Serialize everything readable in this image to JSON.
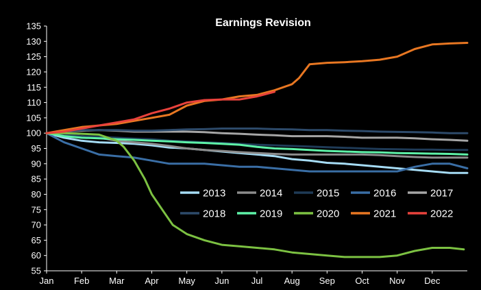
{
  "chart_data": {
    "type": "line",
    "title": "Earnings Revision",
    "xlabel": "",
    "ylabel": "",
    "ylim": [
      55,
      135
    ],
    "yticks": [
      55,
      60,
      65,
      70,
      75,
      80,
      85,
      90,
      95,
      100,
      105,
      110,
      115,
      120,
      125,
      130,
      135
    ],
    "xlim": [
      0,
      12
    ],
    "month_ticks": [
      "Jan",
      "Feb",
      "Mar",
      "Apr",
      "May",
      "Jun",
      "Jul",
      "Aug",
      "Sep",
      "Oct",
      "Nov",
      "Dec"
    ],
    "grid": false,
    "legend_position": "bottom-right",
    "series": [
      {
        "name": "2013",
        "color": "#a6dcf5",
        "x": [
          0,
          0.5,
          1,
          1.5,
          2,
          2.5,
          3,
          3.5,
          4,
          4.5,
          5,
          5.5,
          6,
          6.5,
          7,
          7.5,
          8,
          8.5,
          9,
          9.5,
          10,
          10.5,
          11,
          11.5,
          12
        ],
        "y": [
          100,
          98.5,
          97.5,
          97,
          96.8,
          96.5,
          96,
          95.3,
          95,
          94.5,
          94,
          93.5,
          93,
          92.5,
          91.5,
          91,
          90.3,
          90,
          89.5,
          89,
          88.5,
          88,
          87.5,
          87,
          87
        ]
      },
      {
        "name": "2014",
        "color": "#8c8c8c",
        "x": [
          0,
          0.5,
          1,
          1.5,
          2,
          2.5,
          3,
          3.5,
          4,
          4.5,
          5,
          5.5,
          6,
          6.5,
          7,
          7.5,
          8,
          8.5,
          9,
          9.5,
          10,
          10.5,
          11,
          11.5,
          12
        ],
        "y": [
          100,
          99.5,
          99,
          98.5,
          97.5,
          97,
          96.5,
          95.8,
          95,
          94.5,
          94.2,
          93.8,
          93.5,
          93.2,
          93,
          93,
          93,
          93,
          93,
          92.8,
          92.5,
          92.2,
          92,
          92,
          92
        ]
      },
      {
        "name": "2015",
        "color": "#1f3b57",
        "x": [
          0,
          0.5,
          1,
          1.5,
          2,
          2.5,
          3,
          3.5,
          4,
          4.5,
          5,
          5.5,
          6,
          6.5,
          7,
          7.5,
          8,
          8.5,
          9,
          9.5,
          10,
          10.5,
          11,
          11.5,
          12
        ],
        "y": [
          100,
          99.5,
          99,
          98.8,
          98.5,
          98.2,
          98,
          97.5,
          97.3,
          97,
          96.8,
          96.5,
          96.2,
          96,
          95.8,
          95.6,
          95.4,
          95.2,
          95,
          94.8,
          94.7,
          94.6,
          94.6,
          94.5,
          94.5
        ]
      },
      {
        "name": "2016",
        "color": "#3a6ea5",
        "x": [
          0,
          0.5,
          1,
          1.5,
          2,
          2.5,
          3,
          3.5,
          4,
          4.5,
          5,
          5.5,
          6,
          6.5,
          7,
          7.5,
          8,
          8.5,
          9,
          9.5,
          10,
          10.5,
          11,
          11.5,
          12
        ],
        "y": [
          100,
          97,
          95,
          93,
          92.5,
          92,
          91,
          90,
          90,
          90,
          89.5,
          89,
          89,
          88.5,
          88,
          87.5,
          87.5,
          87.5,
          87.5,
          87.5,
          87.5,
          89,
          90,
          90,
          88.5
        ]
      },
      {
        "name": "2017",
        "color": "#a6a6a6",
        "x": [
          0,
          0.5,
          1,
          1.5,
          2,
          2.5,
          3,
          3.5,
          4,
          4.5,
          5,
          5.5,
          6,
          6.5,
          7,
          7.5,
          8,
          8.5,
          9,
          9.5,
          10,
          10.5,
          11,
          11.5,
          12
        ],
        "y": [
          100,
          100.5,
          100.8,
          101,
          100.8,
          100.5,
          100.5,
          100.5,
          100.5,
          100.3,
          100,
          99.8,
          99.5,
          99.3,
          99,
          99,
          99,
          98.8,
          98.5,
          98.5,
          98.5,
          98.3,
          98,
          97.8,
          97.5
        ]
      },
      {
        "name": "2018",
        "color": "#2d4a6a",
        "x": [
          0,
          0.5,
          1,
          1.5,
          2,
          2.5,
          3,
          3.5,
          4,
          4.5,
          5,
          5.5,
          6,
          6.5,
          7,
          7.5,
          8,
          8.5,
          9,
          9.5,
          10,
          10.5,
          11,
          11.5,
          12
        ],
        "y": [
          100,
          100.5,
          101,
          101,
          101,
          100.8,
          100.8,
          101,
          101.2,
          101.3,
          101.5,
          101.5,
          101.5,
          101.3,
          101.2,
          101,
          101,
          100.8,
          100.7,
          100.5,
          100.4,
          100.3,
          100.2,
          100,
          100
        ]
      },
      {
        "name": "2019",
        "color": "#5ef2a8",
        "x": [
          0,
          0.5,
          1,
          1.5,
          2,
          2.5,
          3,
          3.5,
          4,
          4.5,
          5,
          5.5,
          6,
          6.5,
          7,
          7.5,
          8,
          8.5,
          9,
          9.5,
          10,
          10.5,
          11,
          11.5,
          12
        ],
        "y": [
          100,
          99,
          98.5,
          98.3,
          98,
          97.8,
          97.5,
          97.3,
          97,
          96.8,
          96.5,
          96.2,
          95.5,
          95,
          94.8,
          94.5,
          94.2,
          94,
          93.8,
          93.7,
          93.5,
          93.4,
          93.3,
          93.2,
          93
        ]
      },
      {
        "name": "2020",
        "color": "#7cc142",
        "x": [
          0,
          0.5,
          1,
          1.5,
          2,
          2.2,
          2.5,
          2.8,
          3,
          3.3,
          3.6,
          4,
          4.5,
          5,
          5.5,
          6,
          6.5,
          7,
          7.5,
          8,
          8.5,
          9,
          9.5,
          10,
          10.5,
          11,
          11.5,
          11.9
        ],
        "y": [
          100,
          100,
          99.8,
          99.5,
          97.5,
          95.5,
          91,
          85,
          80,
          75,
          70,
          67,
          65,
          63.5,
          63,
          62.5,
          62,
          61,
          60.5,
          60,
          59.5,
          59.5,
          59.5,
          60,
          61.5,
          62.5,
          62.5,
          62
        ]
      },
      {
        "name": "2021",
        "color": "#e87722",
        "x": [
          0,
          0.5,
          1,
          1.5,
          2,
          2.5,
          3,
          3.5,
          4,
          4.5,
          5,
          5.5,
          6,
          6.5,
          7,
          7.2,
          7.5,
          8,
          8.5,
          9,
          9.5,
          10,
          10.5,
          11,
          11.5,
          12
        ],
        "y": [
          100,
          101,
          102,
          102.5,
          103,
          104,
          105,
          106,
          109,
          110.5,
          111,
          112,
          112.5,
          114,
          116,
          118,
          122.5,
          123,
          123.2,
          123.5,
          124,
          125,
          127.5,
          129,
          129.3,
          129.5
        ]
      },
      {
        "name": "2022",
        "color": "#e8423c",
        "x": [
          0,
          0.5,
          1,
          1.5,
          2,
          2.5,
          3,
          3.5,
          4,
          4.5,
          5,
          5.5,
          6,
          6.5
        ],
        "y": [
          100,
          100.5,
          101.5,
          102.5,
          103.5,
          104.5,
          106.5,
          108,
          110,
          110.8,
          111,
          111,
          112,
          113.5
        ]
      }
    ]
  }
}
